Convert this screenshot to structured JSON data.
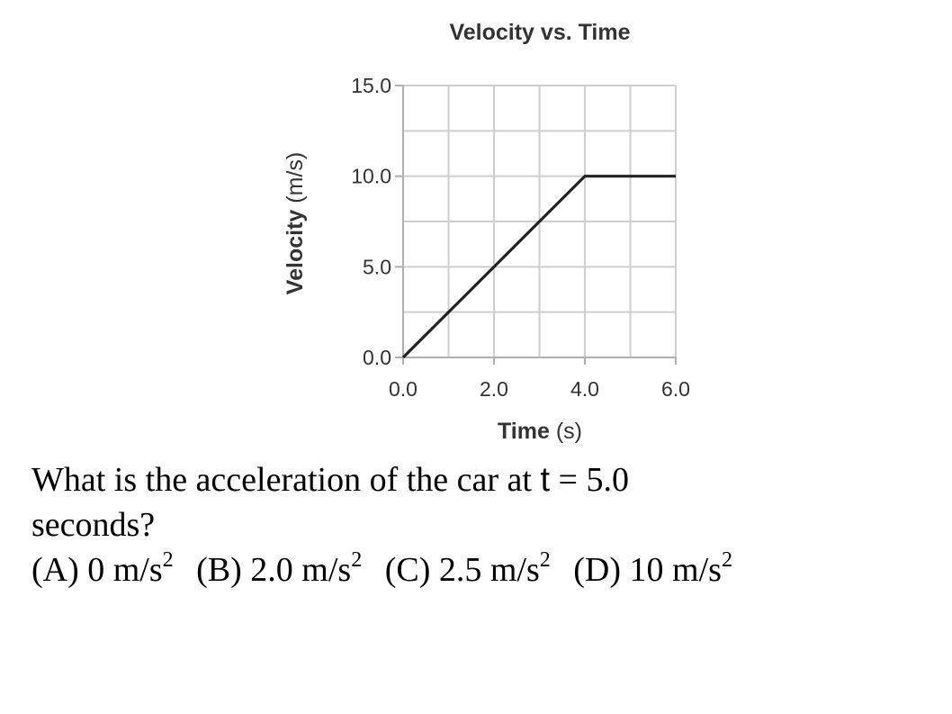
{
  "chart_data": {
    "type": "line",
    "title": "Velocity vs. Time",
    "xlabel": {
      "main": "Time",
      "unit": "(s)"
    },
    "ylabel": {
      "main": "Velocity",
      "unit": "(m/s)"
    },
    "xlim": [
      0,
      6
    ],
    "ylim": [
      0,
      15
    ],
    "grid": true,
    "x_grid_step": 1,
    "y_grid_step": 2.5,
    "x_ticks": [
      0,
      2,
      4,
      6
    ],
    "x_tick_labels": [
      "0.0",
      "2.0",
      "4.0",
      "6.0"
    ],
    "y_ticks": [
      0,
      5,
      10,
      15
    ],
    "y_tick_labels": [
      "0.0",
      "5.0",
      "10.0",
      "15.0"
    ],
    "series": [
      {
        "x": [
          0,
          4,
          6
        ],
        "y": [
          0,
          10,
          10
        ],
        "color": "#222222"
      }
    ]
  },
  "question": {
    "line1_pre": "What is the acceleration of the car at ",
    "line1_var": "t",
    "line1_post": " = 5.0",
    "line2": "seconds?",
    "options": [
      {
        "label": "(A) 0 m/s",
        "exp": "2"
      },
      {
        "label": "(B) 2.0 m/s",
        "exp": "2"
      },
      {
        "label": "(C) 2.5 m/s",
        "exp": "2"
      },
      {
        "label": "(D) 10 m/s",
        "exp": "2"
      }
    ]
  }
}
